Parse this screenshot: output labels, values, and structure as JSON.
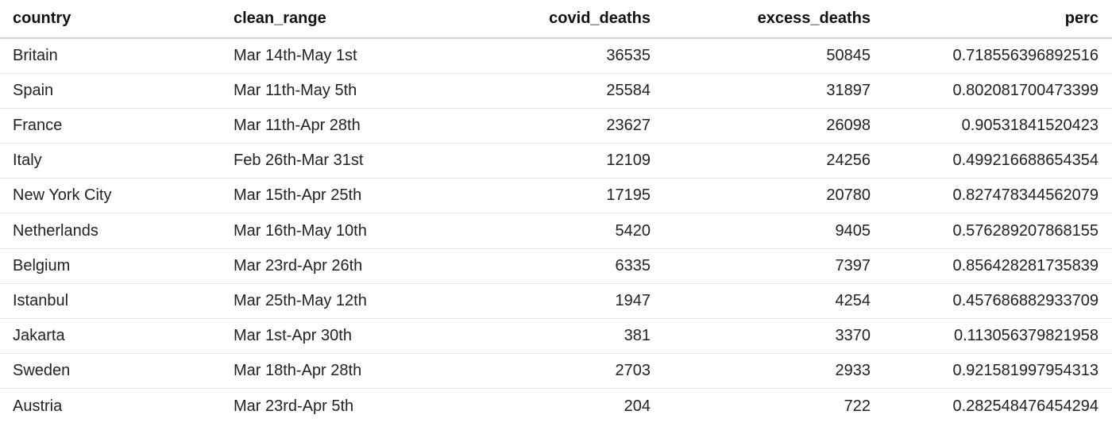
{
  "chart_data": {
    "type": "table",
    "columns": [
      "country",
      "clean_range",
      "covid_deaths",
      "excess_deaths",
      "perc"
    ],
    "rows": [
      [
        "Britain",
        "Mar 14th-May 1st",
        "36535",
        "50845",
        "0.718556396892516"
      ],
      [
        "Spain",
        "Mar 11th-May 5th",
        "25584",
        "31897",
        "0.802081700473399"
      ],
      [
        "France",
        "Mar 11th-Apr 28th",
        "23627",
        "26098",
        "0.90531841520423"
      ],
      [
        "Italy",
        "Feb 26th-Mar 31st",
        "12109",
        "24256",
        "0.499216688654354"
      ],
      [
        "New York City",
        "Mar 15th-Apr 25th",
        "17195",
        "20780",
        "0.827478344562079"
      ],
      [
        "Netherlands",
        "Mar 16th-May 10th",
        "5420",
        "9405",
        "0.576289207868155"
      ],
      [
        "Belgium",
        "Mar 23rd-Apr 26th",
        "6335",
        "7397",
        "0.856428281735839"
      ],
      [
        "Istanbul",
        "Mar 25th-May 12th",
        "1947",
        "4254",
        "0.457686882933709"
      ],
      [
        "Jakarta",
        "Mar 1st-Apr 30th",
        "381",
        "3370",
        "0.113056379821958"
      ],
      [
        "Sweden",
        "Mar 18th-Apr 28th",
        "2703",
        "2933",
        "0.921581997954313"
      ],
      [
        "Austria",
        "Mar 23rd-Apr 5th",
        "204",
        "722",
        "0.282548476454294"
      ]
    ]
  }
}
